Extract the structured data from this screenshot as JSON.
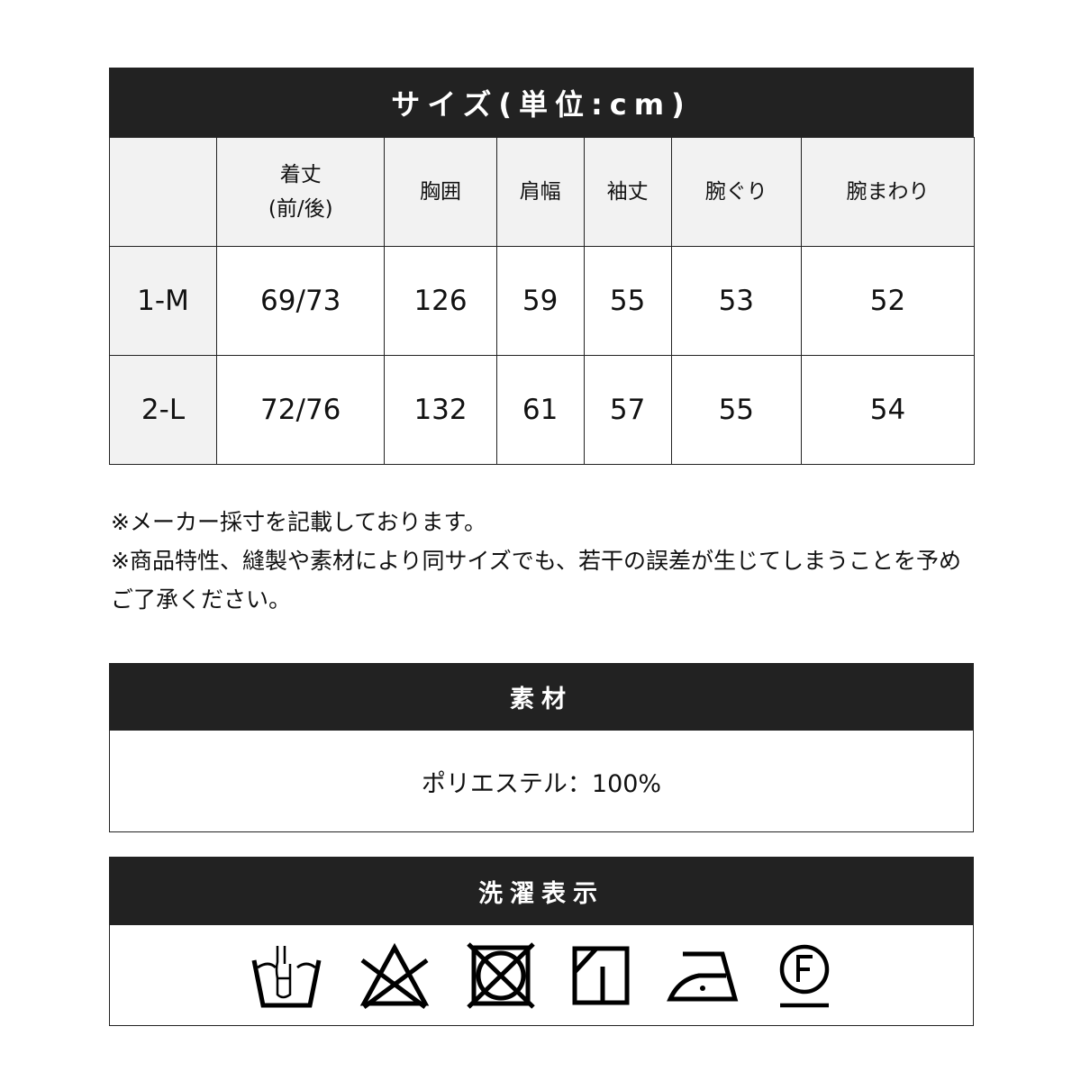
{
  "size_section": {
    "title": "サイズ(単位:cm)",
    "columns": [
      "",
      "着丈\n(前/後)",
      "胸囲",
      "肩幅",
      "袖丈",
      "腕ぐり",
      "腕まわり"
    ],
    "rows": [
      [
        "1-M",
        "69/73",
        "126",
        "59",
        "55",
        "53",
        "52"
      ],
      [
        "2-L",
        "72/76",
        "132",
        "61",
        "57",
        "55",
        "54"
      ]
    ]
  },
  "notes": [
    "※メーカー採寸を記載しております。",
    "※商品特性、縫製や素材により同サイズでも、若干の誤差が生じてしまうことを予めご了承ください。"
  ],
  "material": {
    "title": "素材",
    "value": "ポリエステル：100%"
  },
  "care": {
    "title": "洗濯表示",
    "icons": [
      "hand-wash-icon",
      "no-bleach-icon",
      "no-tumble-dry-icon",
      "line-dry-shade-icon",
      "iron-low-icon",
      "dry-clean-f-icon"
    ]
  }
}
